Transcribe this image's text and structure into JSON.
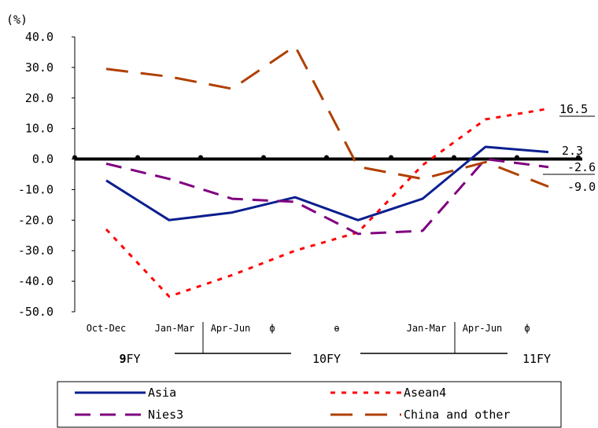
{
  "chart_data": {
    "type": "line",
    "ylabel": "(%)",
    "ylim": [
      -50,
      40
    ],
    "yticks": [
      "40.0",
      "30.0",
      "20.0",
      "10.0",
      "0.0",
      "-10.0",
      "-20.0",
      "-30.0",
      "-40.0",
      "-50.0"
    ],
    "x_labels": [
      "Oct-Dec",
      "Jan-Mar",
      "Apr-Jun",
      "ф",
      "ө",
      "",
      "Jan-Mar",
      "Apr-Jun",
      "ф",
      ""
    ],
    "fy_labels": [
      {
        "prefix": "9",
        "label": "FY"
      },
      {
        "prefix": "",
        "label": "10FY"
      },
      {
        "prefix": "",
        "label": "11FY"
      }
    ],
    "series": [
      {
        "name": "Asia",
        "color": "#0a1f8f",
        "style": "solid",
        "values": [
          -7,
          -20,
          -17.5,
          -12.5,
          -20,
          -13,
          4,
          2.3
        ]
      },
      {
        "name": "Asean4",
        "color": "#ff0000",
        "style": "dotted",
        "values": [
          -23,
          -45,
          -38,
          -30,
          -24,
          -2,
          13,
          16.5
        ]
      },
      {
        "name": "Nies3",
        "color": "#800080",
        "style": "dash",
        "values": [
          -1.5,
          -6.5,
          -13,
          -14,
          -24.5,
          -23.5,
          0,
          -2.6
        ]
      },
      {
        "name": "China and other",
        "color": "#b04000",
        "style": "longdash",
        "values": [
          29.5,
          27,
          23,
          37,
          -2.5,
          -6.5,
          -1,
          -9
        ]
      }
    ],
    "end_labels": [
      "16.5",
      "2.3",
      "-2.6",
      "-9.0"
    ],
    "legend_position": "bottom"
  }
}
